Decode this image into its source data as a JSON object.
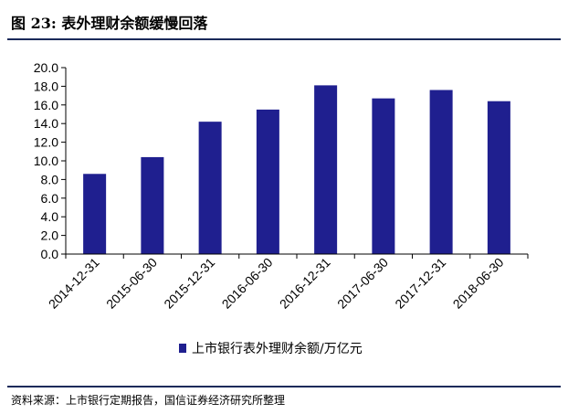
{
  "header": {
    "title": "图 23:  表外理财余额缓慢回落"
  },
  "footer": {
    "source": "资料来源：上市银行定期报告，国信证券经济研究所整理"
  },
  "colors": {
    "bar": "#1f1f8f",
    "rule": "#1a2a5a",
    "axis": "#000000"
  },
  "chart_data": {
    "type": "bar",
    "categories": [
      "2014-12-31",
      "2015-06-30",
      "2015-12-31",
      "2016-06-30",
      "2016-12-31",
      "2017-06-30",
      "2017-12-31",
      "2018-06-30"
    ],
    "series": [
      {
        "name": "上市银行表外理财余额/万亿元",
        "values": [
          8.6,
          10.4,
          14.2,
          15.5,
          18.1,
          16.7,
          17.6,
          16.4
        ]
      }
    ],
    "ylim": [
      0,
      20
    ],
    "yticks": [
      "0.0",
      "2.0",
      "4.0",
      "6.0",
      "8.0",
      "10.0",
      "12.0",
      "14.0",
      "16.0",
      "18.0",
      "20.0"
    ],
    "title": "",
    "xlabel": "",
    "ylabel": "",
    "grid": false,
    "legend_position": "bottom"
  }
}
